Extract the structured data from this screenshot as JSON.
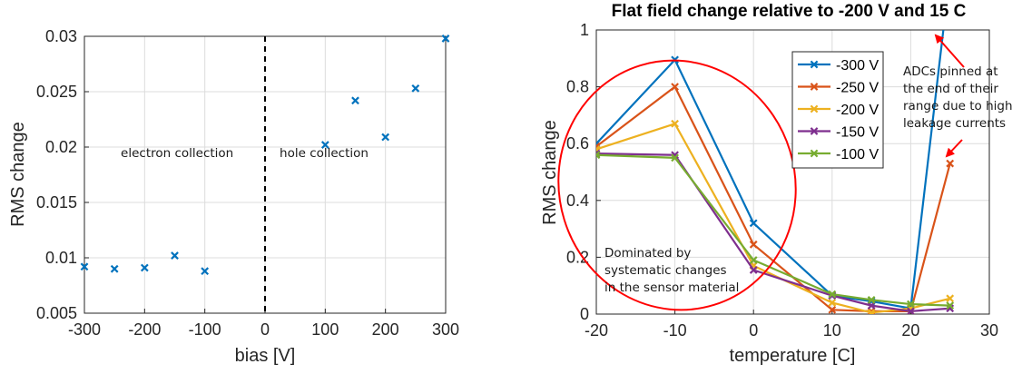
{
  "chart_data": [
    {
      "type": "scatter",
      "title": "",
      "xlabel": "bias [V]",
      "ylabel": "RMS change",
      "xlim": [
        -300,
        300
      ],
      "ylim": [
        0.005,
        0.03
      ],
      "xticks": [
        -300,
        -200,
        -100,
        0,
        100,
        200,
        300
      ],
      "yticks": [
        0.005,
        0.01,
        0.015,
        0.02,
        0.025,
        0.03
      ],
      "ytick_labels": [
        "0.005",
        "0.01",
        "0.015",
        "0.02",
        "0.025",
        "0.03"
      ],
      "grid": true,
      "marker": "x",
      "color": "#0072BD",
      "points": [
        {
          "x": -300,
          "y": 0.0092
        },
        {
          "x": -250,
          "y": 0.009
        },
        {
          "x": -200,
          "y": 0.0091
        },
        {
          "x": -150,
          "y": 0.0102
        },
        {
          "x": -100,
          "y": 0.0088
        },
        {
          "x": 100,
          "y": 0.0202
        },
        {
          "x": 150,
          "y": 0.0242
        },
        {
          "x": 200,
          "y": 0.0209
        },
        {
          "x": 250,
          "y": 0.0253
        },
        {
          "x": 300,
          "y": 0.0298
        }
      ],
      "divider_x": 0,
      "annotations": [
        {
          "text": "electron collection",
          "x": -146,
          "y": 0.0191
        },
        {
          "text": "hole collection",
          "x": 98,
          "y": 0.0191
        }
      ]
    },
    {
      "type": "line",
      "title": "Flat field change relative to -200 V and 15 C",
      "xlabel": "temperature [C]",
      "ylabel": "RMS change",
      "xlim": [
        -20,
        30
      ],
      "ylim": [
        0,
        1
      ],
      "xticks": [
        -20,
        -10,
        0,
        10,
        20,
        30
      ],
      "yticks": [
        0,
        0.2,
        0.4,
        0.6,
        0.8,
        1
      ],
      "ytick_labels": [
        "0",
        "0.2",
        "0.4",
        "0.6",
        "0.8",
        "1"
      ],
      "grid": true,
      "legend_position": "top-right",
      "x": [
        -20,
        -10,
        0,
        10,
        15,
        20,
        25
      ],
      "series": [
        {
          "name": "-300 V",
          "color": "#0072BD",
          "values": [
            0.6,
            0.895,
            0.32,
            0.065,
            0.045,
            0.02,
            1.2
          ]
        },
        {
          "name": "-250 V",
          "color": "#D95319",
          "values": [
            0.59,
            0.8,
            0.245,
            0.015,
            0.01,
            0.01,
            0.53
          ]
        },
        {
          "name": "-200 V",
          "color": "#EDB120",
          "values": [
            0.58,
            0.67,
            0.17,
            0.04,
            0.005,
            0.02,
            0.055
          ]
        },
        {
          "name": "-150 V",
          "color": "#7E2F8E",
          "values": [
            0.565,
            0.56,
            0.155,
            0.065,
            0.03,
            0.01,
            0.02
          ]
        },
        {
          "name": "-100 V",
          "color": "#77AC30",
          "values": [
            0.56,
            0.55,
            0.19,
            0.07,
            0.05,
            0.035,
            0.03
          ]
        }
      ],
      "annotations": [
        {
          "lines": [
            "ADCs pinned at",
            "the end of their",
            "range due to high",
            "leakage currents"
          ]
        },
        {
          "lines": [
            "Dominated by",
            "systematic changes",
            "in the sensor material"
          ]
        }
      ],
      "highlight_color": "#ff0000"
    }
  ]
}
